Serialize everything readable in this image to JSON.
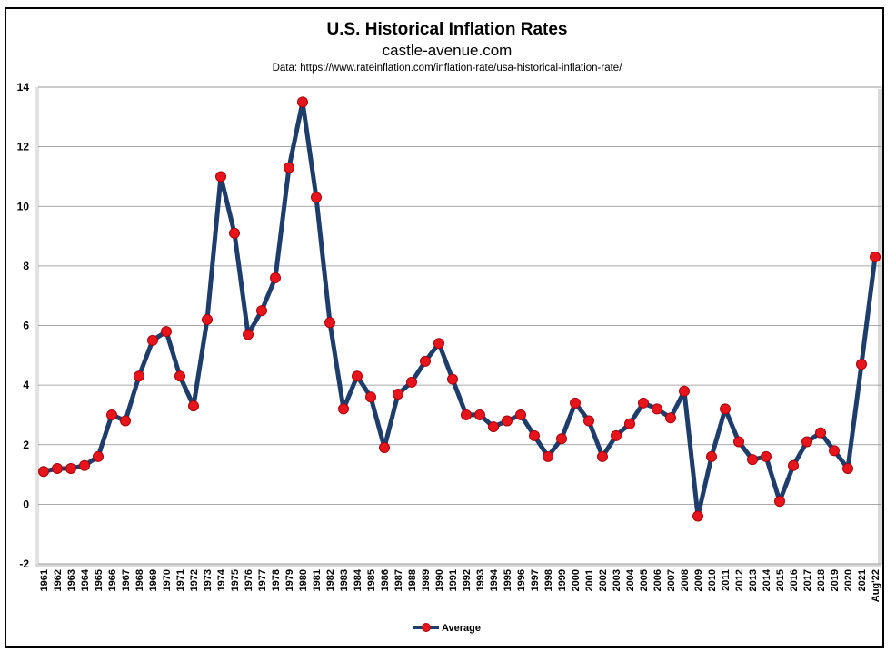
{
  "chart_data": {
    "type": "line",
    "title": "U.S. Historical Inflation Rates",
    "subtitle": "castle-avenue.com",
    "source": "Data: https://www.rateinflation.com/inflation-rate/usa-historical-inflation-rate/",
    "xlabel": "",
    "ylabel": "",
    "ylim": [
      -2,
      14
    ],
    "yticks": [
      "-2",
      "0",
      "2",
      "4",
      "6",
      "8",
      "10",
      "12",
      "14"
    ],
    "grid": true,
    "legend_position": "bottom",
    "categories": [
      "1961",
      "1962",
      "1963",
      "1964",
      "1965",
      "1966",
      "1967",
      "1968",
      "1969",
      "1970",
      "1971",
      "1972",
      "1973",
      "1974",
      "1975",
      "1976",
      "1977",
      "1978",
      "1979",
      "1980",
      "1981",
      "1982",
      "1983",
      "1984",
      "1985",
      "1986",
      "1987",
      "1988",
      "1989",
      "1990",
      "1991",
      "1992",
      "1993",
      "1994",
      "1995",
      "1996",
      "1997",
      "1998",
      "1999",
      "2000",
      "2001",
      "2002",
      "2003",
      "2004",
      "2005",
      "2006",
      "2007",
      "2008",
      "2009",
      "2010",
      "2011",
      "2012",
      "2013",
      "2014",
      "2015",
      "2016",
      "2017",
      "2018",
      "2019",
      "2020",
      "2021",
      "Aug'22"
    ],
    "series": [
      {
        "name": "Average",
        "line_color": "#1f3d6b",
        "marker_color": "#e8141c",
        "values": [
          1.1,
          1.2,
          1.2,
          1.3,
          1.6,
          3.0,
          2.8,
          4.3,
          5.5,
          5.8,
          4.3,
          3.3,
          6.2,
          11.0,
          9.1,
          5.7,
          6.5,
          7.6,
          11.3,
          13.5,
          10.3,
          6.1,
          3.2,
          4.3,
          3.6,
          1.9,
          3.7,
          4.1,
          4.8,
          5.4,
          4.2,
          3.0,
          3.0,
          2.6,
          2.8,
          3.0,
          2.3,
          1.6,
          2.2,
          3.4,
          2.8,
          1.6,
          2.3,
          2.7,
          3.4,
          3.2,
          2.9,
          3.8,
          -0.4,
          1.6,
          3.2,
          2.1,
          1.5,
          1.6,
          0.1,
          1.3,
          2.1,
          2.4,
          1.8,
          1.2,
          4.7,
          8.3
        ]
      }
    ]
  }
}
